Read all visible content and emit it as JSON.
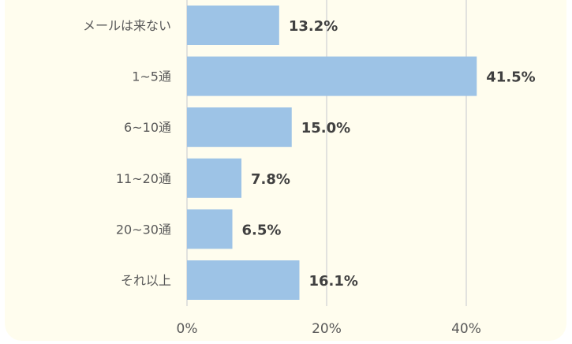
{
  "chart_data": {
    "type": "bar",
    "orientation": "horizontal",
    "categories": [
      "メールは来ない",
      "1~5通",
      "6~10通",
      "11~20通",
      "20~30通",
      "それ以上"
    ],
    "values": [
      13.2,
      41.5,
      15.0,
      7.8,
      6.5,
      16.1
    ],
    "data_labels": [
      "13.2%",
      "41.5%",
      "15.0%",
      "7.8%",
      "6.5%",
      "16.1%"
    ],
    "xticks": [
      "0%",
      "20%",
      "40%"
    ],
    "xtick_values": [
      0,
      20,
      40
    ],
    "xlim": [
      0,
      40
    ],
    "grid": true,
    "bar_color": "#9dc3e6",
    "label_color": "#404040",
    "background_color": "#fffdee"
  }
}
